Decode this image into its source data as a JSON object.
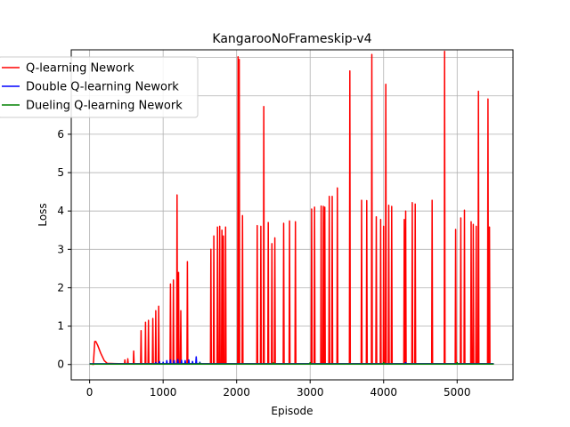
{
  "chart_data": {
    "type": "line",
    "title": "KangarooNoFrameskip-v4",
    "xlabel": "Episode",
    "ylabel": "Loss",
    "xlim": [
      -250,
      5760
    ],
    "ylim": [
      -0.4,
      8.2
    ],
    "xticks": [
      0,
      1000,
      2000,
      3000,
      4000,
      5000
    ],
    "yticks": [
      0,
      1,
      2,
      3,
      4,
      5,
      6
    ],
    "grid": true,
    "legend_position": "upper-left",
    "series": [
      {
        "name": "Q-learning Nework",
        "color": "#ff0000",
        "baseline": 0.02,
        "hump": [
          [
            50,
            0.0
          ],
          [
            70,
            0.6
          ],
          [
            85,
            0.6
          ],
          [
            110,
            0.5
          ],
          [
            150,
            0.3
          ],
          [
            200,
            0.1
          ],
          [
            240,
            0.03
          ]
        ],
        "spikes": [
          [
            480,
            0.12
          ],
          [
            520,
            0.15
          ],
          [
            600,
            0.35
          ],
          [
            700,
            0.88
          ],
          [
            760,
            1.1
          ],
          [
            800,
            1.15
          ],
          [
            860,
            1.2
          ],
          [
            900,
            1.4
          ],
          [
            940,
            1.52
          ],
          [
            1100,
            2.1
          ],
          [
            1140,
            2.2
          ],
          [
            1190,
            4.42
          ],
          [
            1210,
            2.4
          ],
          [
            1240,
            1.4
          ],
          [
            1330,
            2.68
          ],
          [
            1650,
            3.0
          ],
          [
            1690,
            3.35
          ],
          [
            1740,
            3.58
          ],
          [
            1770,
            3.6
          ],
          [
            1800,
            3.5
          ],
          [
            1820,
            3.35
          ],
          [
            1850,
            3.58
          ],
          [
            2020,
            8.02
          ],
          [
            2035,
            7.95
          ],
          [
            2080,
            3.88
          ],
          [
            2280,
            3.62
          ],
          [
            2330,
            3.6
          ],
          [
            2370,
            6.72
          ],
          [
            2430,
            3.7
          ],
          [
            2480,
            3.15
          ],
          [
            2520,
            3.3
          ],
          [
            2640,
            3.68
          ],
          [
            2720,
            3.74
          ],
          [
            2800,
            3.72
          ],
          [
            3020,
            4.05
          ],
          [
            3060,
            4.1
          ],
          [
            3150,
            4.13
          ],
          [
            3180,
            4.12
          ],
          [
            3200,
            4.1
          ],
          [
            3260,
            4.38
          ],
          [
            3300,
            4.38
          ],
          [
            3370,
            4.6
          ],
          [
            3540,
            7.65
          ],
          [
            3700,
            4.28
          ],
          [
            3770,
            4.27
          ],
          [
            3840,
            8.08
          ],
          [
            3900,
            3.85
          ],
          [
            3960,
            3.78
          ],
          [
            4000,
            3.6
          ],
          [
            4030,
            7.3
          ],
          [
            4070,
            4.15
          ],
          [
            4110,
            4.12
          ],
          [
            4280,
            3.78
          ],
          [
            4300,
            4.0
          ],
          [
            4390,
            4.22
          ],
          [
            4430,
            4.18
          ],
          [
            4660,
            4.28
          ],
          [
            4830,
            8.16
          ],
          [
            4980,
            3.52
          ],
          [
            5050,
            3.82
          ],
          [
            5100,
            4.02
          ],
          [
            5190,
            3.72
          ],
          [
            5220,
            3.65
          ],
          [
            5260,
            3.6
          ],
          [
            5290,
            7.12
          ],
          [
            5420,
            6.92
          ],
          [
            5440,
            3.58
          ]
        ]
      },
      {
        "name": "Double Q-learning Nework",
        "color": "#0000ff",
        "baseline": 0.02,
        "spikes": [
          [
            900,
            0.05
          ],
          [
            950,
            0.08
          ],
          [
            1000,
            0.06
          ],
          [
            1050,
            0.1
          ],
          [
            1100,
            0.12
          ],
          [
            1150,
            0.1
          ],
          [
            1200,
            0.13
          ],
          [
            1250,
            0.11
          ],
          [
            1300,
            0.1
          ],
          [
            1350,
            0.12
          ],
          [
            1400,
            0.08
          ],
          [
            1450,
            0.2
          ],
          [
            1500,
            0.06
          ],
          [
            4300,
            0.05
          ]
        ]
      },
      {
        "name": "Dueling Q-learning Nework",
        "color": "#008000",
        "baseline": 0.01,
        "spikes": [
          [
            1500,
            0.04
          ],
          [
            2500,
            0.04
          ],
          [
            3000,
            0.05
          ],
          [
            4000,
            0.05
          ],
          [
            5000,
            0.05
          ]
        ]
      }
    ]
  }
}
